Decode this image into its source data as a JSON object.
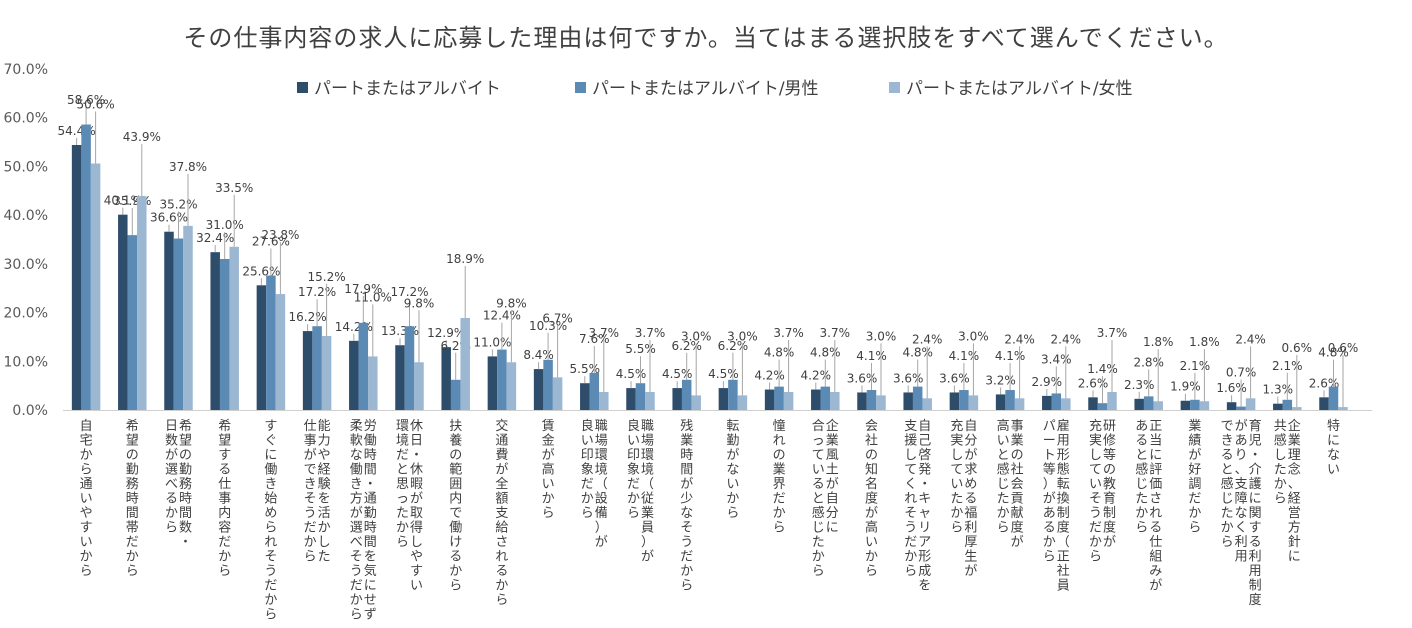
{
  "chart_data": {
    "type": "bar",
    "title": "その仕事内容の求人に応募した理由は何ですか。当てはまる選択肢をすべて選んでください。",
    "ylim": [
      0,
      70
    ],
    "y_ticks": [
      "0.0%",
      "10.0%",
      "20.0%",
      "30.0%",
      "40.0%",
      "50.0%",
      "60.0%",
      "70.0%"
    ],
    "y_tick_values": [
      0,
      10,
      20,
      30,
      40,
      50,
      60,
      70
    ],
    "grid": false,
    "legend_position": "top",
    "categories": [
      "自宅から通いやすいから",
      "希望の勤務時間帯だから",
      "希望の勤務時間数・日数が選べるから",
      "希望する仕事内容だから",
      "すぐに働き始められそうだから",
      "能力や経験を活かした仕事ができそうだから",
      "労働時間・通勤時間を気にせず柔軟な働き方が選べそうだから",
      "休日・休暇が取得しやすい環境だと思ったから",
      "扶養の範囲内で働けるから",
      "交通費が全額支給されるから",
      "賃金が高いから",
      "職場環境（設備）が良い印象だから",
      "職場環境（従業員）が良い印象だから",
      "残業時間が少なそうだから",
      "転勤がないから",
      "憧れの業界だから",
      "企業風土が自分に合っていると感じたから",
      "会社の知名度が高いから",
      "自己啓発・キャリア形成を支援してくれそうだから",
      "自分が求める福利厚生が充実していたから",
      "事業の社会貢献度が高いと感じたから",
      "雇用形態転換制度（正社員パート等）があるから",
      "研修等の教育制度が充実していそうだから",
      "正当に評価される仕組みがあると感じたから",
      "業績が好調だから",
      "育児・介護に関する利用制度があり、支障なく利用できると感じたから",
      "企業理念、経営方針に共感したから",
      "特にない"
    ],
    "axis_labels": [
      [
        "自宅から通いやすいから"
      ],
      [
        "希望の勤務時間帯だから"
      ],
      [
        "希望の勤務時間数・",
        "日数が選べるから"
      ],
      [
        "希望する仕事内容だから"
      ],
      [
        "すぐに働き始められそうだから"
      ],
      [
        "能力や経験を活かした",
        "仕事ができそうだから"
      ],
      [
        "労働時間・通勤時間を気にせず",
        "柔軟な働き方が選べそうだから"
      ],
      [
        "休日・休暇が取得しやすい",
        "環境だと思ったから"
      ],
      [
        "扶養の範囲内で働けるから"
      ],
      [
        "交通費が全額支給されるから"
      ],
      [
        "賃金が高いから"
      ],
      [
        "職場環境（設備）が",
        "良い印象だから"
      ],
      [
        "職場環境（従業員）が",
        "良い印象だから"
      ],
      [
        "残業時間が少なそうだから"
      ],
      [
        "転勤がないから"
      ],
      [
        "憧れの業界だから"
      ],
      [
        "企業風土が自分に",
        "合っていると感じたから"
      ],
      [
        "会社の知名度が高いから"
      ],
      [
        "自己啓発・キャリア形成を",
        "支援してくれそうだから"
      ],
      [
        "自分が求める福利厚生が",
        "充実していたから"
      ],
      [
        "事業の社会貢献度が",
        "高いと感じたから"
      ],
      [
        "雇用形態転換制度（正社員",
        "パート等）があるから"
      ],
      [
        "研修等の教育制度が",
        "充実していそうだから"
      ],
      [
        "正当に評価される仕組みが",
        "あると感じたから"
      ],
      [
        "業績が好調だから"
      ],
      [
        "育児・介護に関する利用制度",
        "があり、支障なく利用",
        "できると感じたから"
      ],
      [
        "企業理念、経営方針に",
        "共感したから"
      ],
      [
        "特にない"
      ]
    ],
    "series": [
      {
        "name": "パートまたはアルバイト",
        "color": "#2e4d6b",
        "values": [
          54.4,
          40.1,
          36.6,
          32.4,
          25.6,
          16.2,
          14.2,
          13.3,
          12.9,
          11.0,
          8.4,
          5.5,
          4.5,
          4.5,
          4.5,
          4.2,
          4.2,
          3.6,
          3.6,
          3.6,
          3.2,
          2.9,
          2.6,
          2.3,
          1.9,
          1.6,
          1.3,
          2.6
        ],
        "labels": [
          "54.4%",
          "40.1%",
          "36.6%",
          "32.4%",
          "25.6%",
          "16.2%",
          "14.2%",
          "13.3%",
          "12.9%",
          "11.0%",
          "8.4%",
          "5.5%",
          "4.5%",
          "4.5%",
          "4.5%",
          "4.2%",
          "4.2%",
          "3.6%",
          "3.6%",
          "3.6%",
          "3.2%",
          "2.9%",
          "2.6%",
          "2.3%",
          "1.9%",
          "1.6%",
          "1.3%",
          "2.6%"
        ]
      },
      {
        "name": "パートまたはアルバイト/男性",
        "color": "#5b8ab5",
        "values": [
          58.6,
          35.9,
          35.2,
          31.0,
          27.6,
          17.2,
          17.9,
          17.2,
          6.2,
          12.4,
          10.3,
          7.6,
          5.5,
          6.2,
          6.2,
          4.8,
          4.8,
          4.1,
          4.8,
          4.1,
          4.1,
          3.4,
          1.4,
          2.8,
          2.1,
          0.7,
          2.1,
          4.8
        ],
        "labels": [
          "58.6%",
          "35.9%",
          "35.2%",
          "31.0%",
          "27.6%",
          "17.2%",
          "17.9%",
          "17.2%",
          "6.2%",
          "12.4%",
          "10.3%",
          "7.6%",
          "5.5%",
          "6.2%",
          "6.2%",
          "4.8%",
          "4.8%",
          "4.1%",
          "4.8%",
          "4.1%",
          "4.1%",
          "3.4%",
          "1.4%",
          "2.8%",
          "2.1%",
          "0.7%",
          "2.1%",
          "4.8%"
        ]
      },
      {
        "name": "パートまたはアルバイト/女性",
        "color": "#9cb7d2",
        "values": [
          50.6,
          43.9,
          37.8,
          33.5,
          23.8,
          15.2,
          11.0,
          9.8,
          18.9,
          9.8,
          6.7,
          3.7,
          3.7,
          3.0,
          3.0,
          3.7,
          3.7,
          3.0,
          2.4,
          3.0,
          2.4,
          2.4,
          3.7,
          1.8,
          1.8,
          2.4,
          0.6,
          0.6
        ],
        "labels": [
          "50.6%",
          "43.9%",
          "37.8%",
          "33.5%",
          "23.8%",
          "15.2%",
          "11.0%",
          "9.8%",
          "18.9%",
          "9.8%",
          "6.7%",
          "3.7%",
          "3.7%",
          "3.0%",
          "3.0%",
          "3.7%",
          "3.7%",
          "3.0%",
          "2.4%",
          "3.0%",
          "2.4%",
          "2.4%",
          "3.7%",
          "1.8%",
          "1.8%",
          "2.4%",
          "0.6%",
          "0.6%"
        ]
      }
    ]
  }
}
